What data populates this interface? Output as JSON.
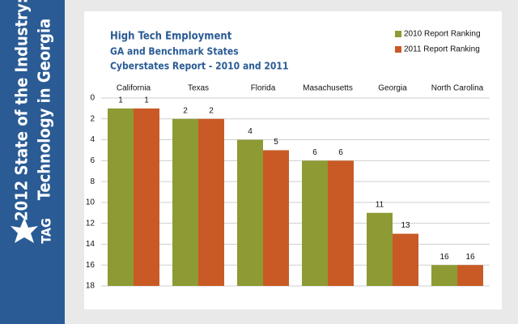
{
  "sidebar": {
    "title_lines": [
      "2012 State of the Industry:",
      "Technology in Georgia"
    ],
    "logo": "TAG"
  },
  "chart_data": {
    "type": "bar",
    "title_lines": [
      "High Tech Employment",
      "GA and Benchmark States",
      "Cyberstates Report  - 2010 and 2011"
    ],
    "categories": [
      "California",
      "Texas",
      "Florida",
      "Masachusetts",
      "Georgia",
      "North Carolina"
    ],
    "series": [
      {
        "name": "2010 Report Ranking",
        "color": "#8e9a33",
        "values": [
          1,
          2,
          4,
          6,
          11,
          16
        ]
      },
      {
        "name": "2011 Report Ranking",
        "color": "#c95a26",
        "values": [
          1,
          2,
          5,
          6,
          13,
          16
        ]
      }
    ],
    "ylim": [
      0,
      18
    ],
    "yticks": [
      0,
      2,
      4,
      6,
      8,
      10,
      12,
      14,
      16,
      18
    ],
    "y_inverted": true,
    "grid": true,
    "legend": "top-right"
  }
}
